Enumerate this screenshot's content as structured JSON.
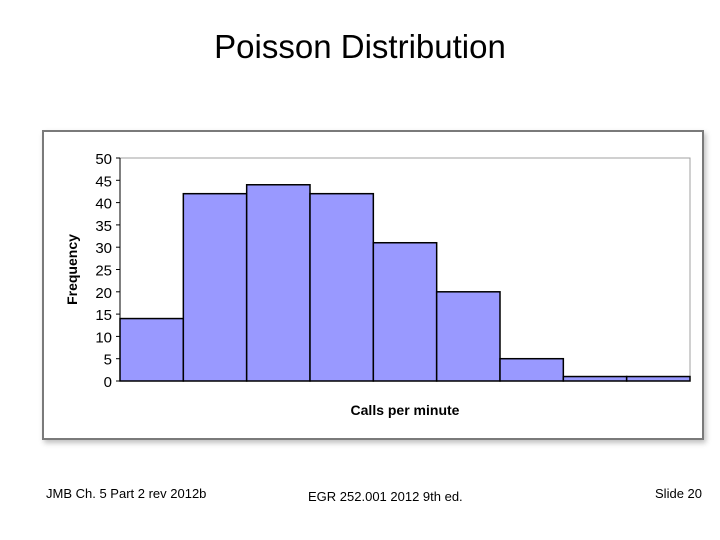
{
  "slide": {
    "title": "Poisson Distribution",
    "footer_left": "JMB Ch. 5 Part 2 rev 2012b",
    "footer_center": "EGR 252.001 2012 9th ed.",
    "footer_right": "Slide 20"
  },
  "colors": {
    "bar_fill": "#9999ff",
    "bar_stroke": "#000000",
    "frame": "#7a7a7a",
    "plot_border": "#a0a0a0"
  },
  "chart_data": {
    "type": "bar",
    "title": "",
    "xlabel": "Calls per minute",
    "ylabel": "Frequency",
    "categories": [
      "",
      "",
      "",
      "",
      "",
      "",
      "",
      "",
      ""
    ],
    "values": [
      14,
      42,
      44,
      42,
      31,
      20,
      5,
      1,
      1
    ],
    "ylim": [
      0,
      50
    ],
    "yticks": [
      "0",
      "5",
      "10",
      "15",
      "20",
      "25",
      "30",
      "35",
      "40",
      "45",
      "50"
    ],
    "grid": false,
    "legend": "none"
  }
}
